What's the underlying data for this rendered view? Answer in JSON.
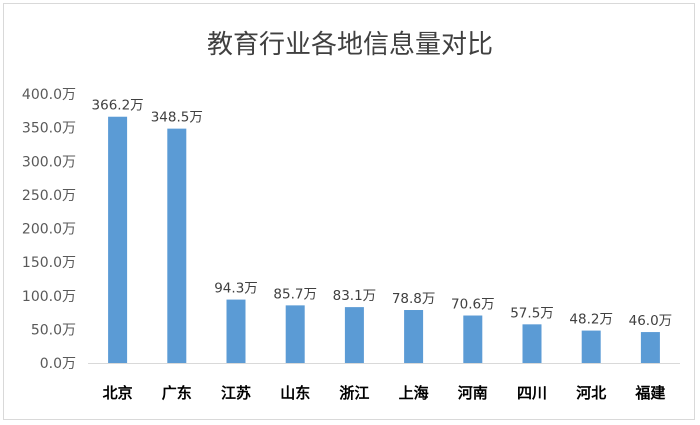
{
  "chart_data": {
    "type": "bar",
    "title": "教育行业各地信息量对比",
    "categories": [
      "北京",
      "广东",
      "江苏",
      "山东",
      "浙江",
      "上海",
      "河南",
      "四川",
      "河北",
      "福建"
    ],
    "values": [
      366.2,
      348.5,
      94.3,
      85.7,
      83.1,
      78.8,
      70.6,
      57.5,
      48.2,
      46.0
    ],
    "data_labels": [
      "366.2万",
      "348.5万",
      "94.3万",
      "85.7万",
      "83.1万",
      "78.8万",
      "70.6万",
      "57.5万",
      "48.2万",
      "46.0万"
    ],
    "y_ticks": [
      "0.0万",
      "50.0万",
      "100.0万",
      "150.0万",
      "200.0万",
      "250.0万",
      "300.0万",
      "350.0万",
      "400.0万"
    ],
    "ylim": [
      0,
      400
    ],
    "xlabel": "",
    "ylabel": "",
    "grid": false,
    "legend": "none",
    "bar_color": "#5b9bd5"
  }
}
